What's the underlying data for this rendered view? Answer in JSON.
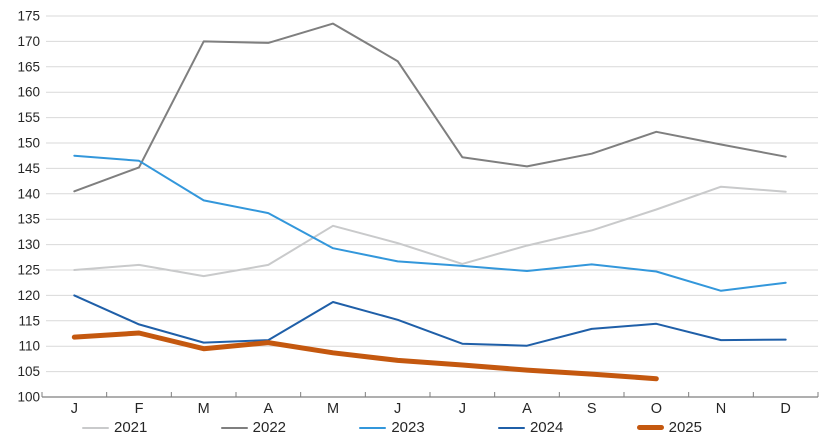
{
  "chart_data": {
    "type": "line",
    "title": "",
    "xlabel": "",
    "ylabel": "",
    "categories": [
      "J",
      "F",
      "M",
      "A",
      "M",
      "J",
      "J",
      "A",
      "S",
      "O",
      "N",
      "D"
    ],
    "series": [
      {
        "name": "2021",
        "color": "#C9CACB",
        "stroke_width": 2,
        "values": [
          125.0,
          126.0,
          123.8,
          126.0,
          133.7,
          130.3,
          126.2,
          129.8,
          132.8,
          136.9,
          141.4,
          140.4
        ]
      },
      {
        "name": "2022",
        "color": "#7F7F7F",
        "stroke_width": 2,
        "values": [
          140.5,
          145.2,
          170.0,
          169.7,
          173.5,
          166.1,
          147.2,
          145.4,
          147.9,
          152.2,
          149.7,
          147.3
        ]
      },
      {
        "name": "2023",
        "color": "#3397DB",
        "stroke_width": 2,
        "values": [
          147.5,
          146.5,
          138.7,
          136.2,
          129.3,
          126.7,
          125.8,
          124.8,
          126.1,
          124.7,
          120.9,
          122.5
        ]
      },
      {
        "name": "2024",
        "color": "#1F5FA8",
        "stroke_width": 2,
        "values": [
          120.0,
          114.3,
          110.7,
          111.2,
          118.7,
          115.2,
          110.5,
          110.1,
          113.4,
          114.4,
          111.2,
          111.3
        ]
      },
      {
        "name": "2025",
        "color": "#C4580F",
        "stroke_width": 5,
        "values": [
          111.8,
          112.6,
          109.5,
          110.7,
          108.7,
          107.2,
          106.3,
          105.3,
          104.5,
          103.6,
          null,
          null
        ]
      }
    ],
    "ylim": [
      100,
      175
    ],
    "ytick_step": 5,
    "grid": true,
    "legend_position": "bottom",
    "grid_color": "#D9D9D9",
    "axis_color": "#7F7F7F",
    "label_color": "#262626"
  }
}
